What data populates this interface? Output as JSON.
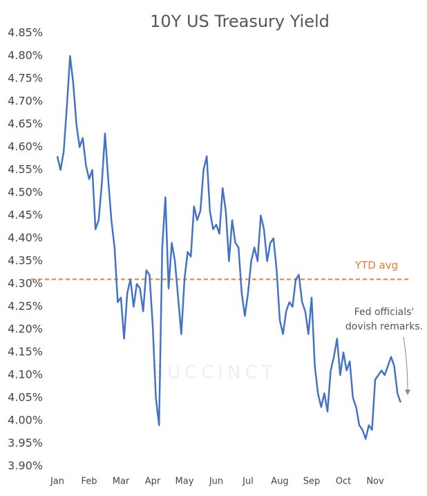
{
  "chart_data": {
    "type": "line",
    "title": "10Y US Treasury Yield",
    "watermark": "SUCCINCT",
    "categories": [
      "Jan",
      null,
      null,
      null,
      null,
      null,
      null,
      null,
      null,
      null,
      "Feb",
      null,
      null,
      null,
      null,
      null,
      null,
      null,
      null,
      null,
      "Mar",
      null,
      null,
      null,
      null,
      null,
      null,
      null,
      null,
      null,
      "Apr",
      null,
      null,
      null,
      null,
      null,
      null,
      null,
      null,
      null,
      "May",
      null,
      null,
      null,
      null,
      null,
      null,
      null,
      null,
      null,
      "Jun",
      null,
      null,
      null,
      null,
      null,
      null,
      null,
      null,
      null,
      "Jul",
      null,
      null,
      null,
      null,
      null,
      null,
      null,
      null,
      null,
      "Aug",
      null,
      null,
      null,
      null,
      null,
      null,
      null,
      null,
      null,
      "Sep",
      null,
      null,
      null,
      null,
      null,
      null,
      null,
      null,
      null,
      "Oct",
      null,
      null,
      null,
      null,
      null,
      null,
      null,
      null,
      null,
      "Nov",
      null,
      null,
      null,
      null,
      null,
      null,
      null,
      null
    ],
    "series": [
      {
        "name": "10Y US Treasury Yield",
        "color": "#4472c4",
        "values": [
          4.58,
          4.55,
          4.59,
          4.69,
          4.8,
          4.74,
          4.65,
          4.6,
          4.62,
          4.56,
          4.53,
          4.55,
          4.42,
          4.44,
          4.52,
          4.63,
          4.53,
          4.44,
          4.38,
          4.26,
          4.27,
          4.18,
          4.28,
          4.31,
          4.25,
          4.3,
          4.29,
          4.24,
          4.33,
          4.32,
          4.21,
          4.05,
          3.99,
          4.38,
          4.49,
          4.29,
          4.39,
          4.35,
          4.27,
          4.19,
          4.31,
          4.37,
          4.36,
          4.47,
          4.44,
          4.46,
          4.55,
          4.58,
          4.46,
          4.42,
          4.43,
          4.41,
          4.51,
          4.46,
          4.35,
          4.44,
          4.39,
          4.38,
          4.28,
          4.23,
          4.28,
          4.35,
          4.38,
          4.35,
          4.45,
          4.42,
          4.35,
          4.39,
          4.4,
          4.33,
          4.22,
          4.19,
          4.24,
          4.26,
          4.25,
          4.31,
          4.32,
          4.26,
          4.24,
          4.19,
          4.27,
          4.12,
          4.06,
          4.03,
          4.06,
          4.02,
          4.11,
          4.14,
          4.18,
          4.1,
          4.15,
          4.11,
          4.13,
          4.05,
          4.03,
          3.99,
          3.98,
          3.96,
          3.99,
          3.98,
          4.09,
          4.1,
          4.11,
          4.1,
          4.12,
          4.14,
          4.12,
          4.06,
          4.04
        ]
      }
    ],
    "ylim": [
      3.9,
      4.85
    ],
    "yticks": [
      {
        "value": 3.9,
        "label": "3.90%"
      },
      {
        "value": 3.95,
        "label": "3.95%"
      },
      {
        "value": 4.0,
        "label": "4.00%"
      },
      {
        "value": 4.05,
        "label": "4.05%"
      },
      {
        "value": 4.1,
        "label": "4.10%"
      },
      {
        "value": 4.15,
        "label": "4.15%"
      },
      {
        "value": 4.2,
        "label": "4.20%"
      },
      {
        "value": 4.25,
        "label": "4.25%"
      },
      {
        "value": 4.3,
        "label": "4.30%"
      },
      {
        "value": 4.35,
        "label": "4.35%"
      },
      {
        "value": 4.4,
        "label": "4.40%"
      },
      {
        "value": 4.45,
        "label": "4.45%"
      },
      {
        "value": 4.5,
        "label": "4.50%"
      },
      {
        "value": 4.55,
        "label": "4.55%"
      },
      {
        "value": 4.6,
        "label": "4.60%"
      },
      {
        "value": 4.65,
        "label": "4.65%"
      },
      {
        "value": 4.7,
        "label": "4.70%"
      },
      {
        "value": 4.75,
        "label": "4.75%"
      },
      {
        "value": 4.8,
        "label": "4.80%"
      },
      {
        "value": 4.85,
        "label": "4.85%"
      }
    ],
    "reference_line": {
      "value": 4.31,
      "label": "YTD avg",
      "color": "#ed7d31"
    },
    "annotation": {
      "lines": [
        "Fed officials'",
        "dovish remarks."
      ]
    }
  }
}
